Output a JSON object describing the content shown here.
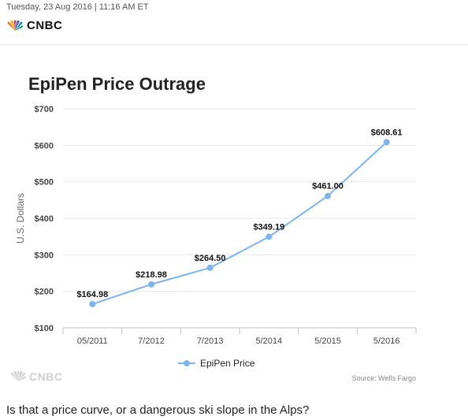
{
  "header": {
    "date": "Tuesday, 23 Aug 2016 | 11:16 AM ET",
    "logo_text": "CNBC"
  },
  "chart_data": {
    "type": "line",
    "title": "EpiPen Price Outrage",
    "ylabel": "U.S. Dollars",
    "xlabel": "",
    "categories": [
      "05/2011",
      "7/2012",
      "7/2013",
      "5/2014",
      "5/2015",
      "5/2016"
    ],
    "series": [
      {
        "name": "EpiPen Price",
        "values": [
          164.98,
          218.98,
          264.5,
          349.19,
          461.0,
          608.61
        ],
        "labels": [
          "$164.98",
          "$218.98",
          "$264.50",
          "$349.19",
          "$461.00",
          "$608.61"
        ]
      }
    ],
    "ylim": [
      100,
      700
    ],
    "yticks": [
      100,
      200,
      300,
      400,
      500,
      600,
      700
    ],
    "ytick_labels": [
      "$100",
      "$200",
      "$300",
      "$400",
      "$500",
      "$600",
      "$700"
    ],
    "grid": true,
    "legend": "bottom-center",
    "color": "#7cb5ec",
    "source": "Source: Wells Fargo"
  },
  "footer": {
    "logo_text": "CNBC"
  },
  "caption": "Is that a price curve, or a dangerous ski slope in the Alps?"
}
